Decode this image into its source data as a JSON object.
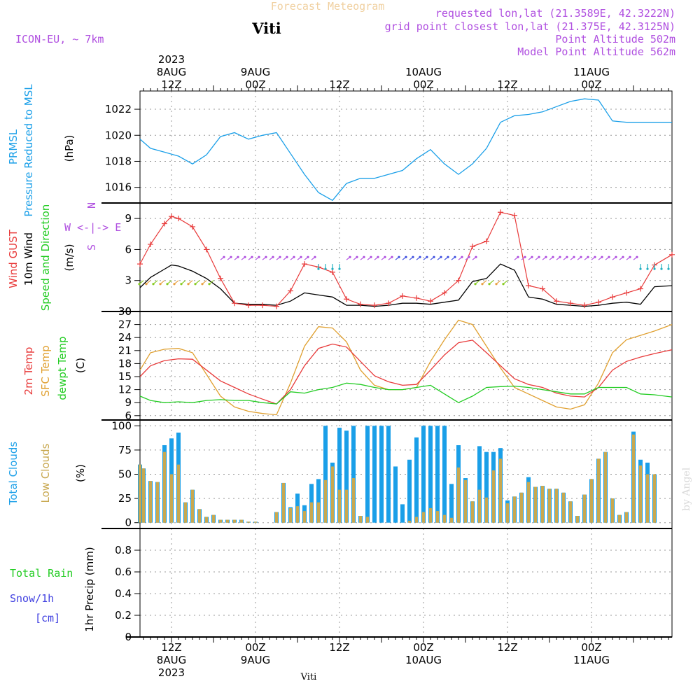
{
  "header": {
    "title": "Forecast Meteogram",
    "location": "Viti",
    "model": "ICON-EU, ~ 7km",
    "requested": "requested lon,lat (21.3589E, 42.3222N)",
    "gridpoint": "grid point closest lon,lat (21.375E, 42.3125N)",
    "point_alt": "Point Altitude 502m",
    "model_alt": "Model Point Altitude 562m",
    "watermark": "by Angel",
    "footer_location": "Viti"
  },
  "time_axis": {
    "top_labels": [
      {
        "lines": [
          "2023",
          "8AUG",
          "12Z"
        ],
        "hour": 12
      },
      {
        "lines": [
          "9AUG",
          "00Z"
        ],
        "hour": 24
      },
      {
        "lines": [
          "12Z"
        ],
        "hour": 36
      },
      {
        "lines": [
          "10AUG",
          "00Z"
        ],
        "hour": 48
      },
      {
        "lines": [
          "12Z"
        ],
        "hour": 60
      },
      {
        "lines": [
          "11AUG",
          "00Z"
        ],
        "hour": 72
      }
    ],
    "bottom_labels": [
      {
        "lines": [
          "12Z",
          "8AUG",
          "2023"
        ],
        "hour": 12
      },
      {
        "lines": [
          "00Z",
          "9AUG"
        ],
        "hour": 24
      },
      {
        "lines": [
          "12Z"
        ],
        "hour": 36
      },
      {
        "lines": [
          "00Z",
          "10AUG"
        ],
        "hour": 48
      },
      {
        "lines": [
          "12Z"
        ],
        "hour": 60
      },
      {
        "lines": [
          "00Z",
          "11AUG"
        ],
        "hour": 72
      }
    ],
    "start_hour": 7.5,
    "end_hour": 83.5
  },
  "colors": {
    "pressure": "#1a9fe8",
    "gust": "#e83a3a",
    "wind": "#000000",
    "temp": "#e83a3a",
    "sfc": "#e0a030",
    "dewpt": "#22cc22",
    "total_clouds": "#1a9fe8",
    "low_clouds": "#c8a850",
    "rain": "#22cc22",
    "snow": "#4040e0",
    "purple": "#b050e0",
    "title": "#f0d0a0"
  },
  "legends": {
    "pressure": {
      "lines": [
        "PRMSL",
        "Pressure Reduced to MSL"
      ],
      "unit": "(hPa)"
    },
    "wind": {
      "lines": [
        "Wind GUST",
        "10m Wind",
        "Speed and Direction"
      ],
      "unit": "(m/s)",
      "compass": [
        "N",
        "W <-|-> E",
        "S"
      ]
    },
    "temp": {
      "lines": [
        "2m Temp",
        "SFC Temp",
        "dewpt Temp"
      ],
      "unit": "(C)"
    },
    "clouds": {
      "lines": [
        "Total Clouds",
        "Low Clouds"
      ],
      "unit": "(%)"
    },
    "precip": {
      "lines": [
        "Total  Rain",
        "Snow/1h",
        "[cm]"
      ],
      "unit": "1hr Precip (mm)"
    }
  },
  "chart_data": [
    {
      "type": "line",
      "title": "PRMSL Pressure Reduced to MSL",
      "ylabel": "(hPa)",
      "ylim": [
        1014.8,
        1023.4
      ],
      "yticks": [
        "1016",
        "1018",
        "1020",
        "1022"
      ],
      "x_hours": [
        7.5,
        9,
        11,
        13,
        15,
        17,
        19,
        21,
        23,
        25,
        27,
        29,
        31,
        33,
        35,
        37,
        39,
        41,
        43,
        45,
        47,
        49,
        51,
        53,
        55,
        57,
        59,
        61,
        63,
        65,
        67,
        69,
        71,
        73,
        75,
        77,
        79,
        81,
        83.5
      ],
      "series": [
        {
          "name": "PRMSL",
          "values": [
            1019.7,
            1019.0,
            1018.7,
            1018.4,
            1017.8,
            1018.5,
            1019.9,
            1020.2,
            1019.7,
            1020.0,
            1020.2,
            1018.6,
            1017.0,
            1015.6,
            1015.0,
            1016.3,
            1016.7,
            1016.7,
            1017.0,
            1017.3,
            1018.2,
            1018.9,
            1017.8,
            1017.0,
            1017.8,
            1019.0,
            1021.0,
            1021.5,
            1021.6,
            1021.8,
            1022.2,
            1022.6,
            1022.8,
            1022.7,
            1021.1,
            1021.0,
            1021.0,
            1021.0,
            1021.0
          ]
        }
      ]
    },
    {
      "type": "line",
      "title": "Wind GUST / 10m Wind Speed and Direction",
      "ylabel": "(m/s)",
      "ylim": [
        0,
        10.5
      ],
      "yticks": [
        "0",
        "3",
        "6",
        "9"
      ],
      "x_hours": [
        7.5,
        9,
        11,
        12,
        13,
        15,
        17,
        19,
        21,
        23,
        25,
        27,
        29,
        31,
        33,
        35,
        37,
        39,
        41,
        43,
        45,
        47,
        49,
        51,
        53,
        55,
        57,
        59,
        61,
        63,
        65,
        67,
        69,
        71,
        73,
        75,
        77,
        79,
        81,
        83.5
      ],
      "series": [
        {
          "name": "Wind GUST",
          "values": [
            4.6,
            6.5,
            8.5,
            9.2,
            9.0,
            8.2,
            6.0,
            3.2,
            0.8,
            0.6,
            0.6,
            0.5,
            2.0,
            4.6,
            4.3,
            3.8,
            1.2,
            0.7,
            0.6,
            0.8,
            1.5,
            1.3,
            1.0,
            1.8,
            3.0,
            6.3,
            6.8,
            9.6,
            9.3,
            2.5,
            2.2,
            1.0,
            0.8,
            0.6,
            0.9,
            1.4,
            1.8,
            2.2,
            4.5,
            5.5
          ]
        },
        {
          "name": "10m Wind",
          "values": [
            2.3,
            3.3,
            4.1,
            4.5,
            4.4,
            3.9,
            3.2,
            2.2,
            0.8,
            0.7,
            0.7,
            0.6,
            1.0,
            1.8,
            1.6,
            1.4,
            0.6,
            0.6,
            0.5,
            0.6,
            0.8,
            0.8,
            0.7,
            0.9,
            1.1,
            2.9,
            3.2,
            4.6,
            4.0,
            1.4,
            1.2,
            0.7,
            0.6,
            0.5,
            0.6,
            0.8,
            0.9,
            0.7,
            2.4,
            2.5
          ]
        }
      ]
    },
    {
      "type": "line",
      "title": "2m Temp / SFC Temp / dewpt Temp",
      "ylabel": "(C)",
      "ylim": [
        5,
        30
      ],
      "yticks": [
        "6",
        "9",
        "12",
        "15",
        "18",
        "21",
        "24",
        "27",
        "30"
      ],
      "x_hours": [
        7.5,
        9,
        11,
        13,
        15,
        17,
        19,
        21,
        23,
        25,
        27,
        29,
        31,
        33,
        35,
        37,
        39,
        41,
        43,
        45,
        47,
        49,
        51,
        53,
        55,
        57,
        59,
        61,
        63,
        65,
        67,
        69,
        71,
        73,
        75,
        77,
        79,
        81,
        83.5
      ],
      "series": [
        {
          "name": "2m Temp",
          "values": [
            15,
            17.5,
            18.7,
            19.1,
            19.0,
            16.5,
            14.0,
            12.5,
            11.0,
            9.8,
            8.7,
            12.0,
            17.5,
            21.5,
            22.5,
            21.8,
            18.5,
            15.2,
            13.8,
            13.0,
            13.2,
            16.5,
            20.0,
            22.8,
            23.4,
            20.5,
            17.5,
            14.5,
            13.2,
            12.5,
            11.2,
            10.5,
            10.3,
            12.5,
            16.5,
            18.5,
            19.5,
            20.3,
            21.2
          ]
        },
        {
          "name": "SFC Temp",
          "values": [
            16.5,
            20.5,
            21.3,
            21.5,
            20.5,
            15.5,
            10.5,
            8.0,
            7.0,
            6.5,
            6.2,
            13.5,
            22.0,
            26.5,
            26.2,
            23.0,
            16.5,
            13.0,
            12.0,
            12.0,
            12.5,
            18.5,
            23.5,
            28.0,
            27.0,
            22.0,
            17.0,
            12.5,
            11.0,
            9.5,
            8.0,
            7.5,
            8.5,
            13.5,
            20.5,
            23.5,
            24.5,
            25.5,
            27.0
          ]
        },
        {
          "name": "dewpt Temp",
          "values": [
            10.5,
            9.5,
            9.0,
            9.2,
            9.0,
            9.5,
            9.7,
            9.5,
            9.5,
            9.0,
            8.7,
            11.5,
            11.2,
            12.0,
            12.5,
            13.5,
            13.2,
            12.5,
            12.0,
            12.0,
            12.5,
            13.0,
            11.0,
            9.0,
            10.5,
            12.5,
            12.7,
            12.8,
            12.5,
            12.0,
            11.5,
            11.0,
            11.0,
            12.5,
            12.5,
            12.5,
            11.0,
            10.8,
            10.3
          ]
        }
      ]
    },
    {
      "type": "bar",
      "title": "Total Clouds / Low Clouds",
      "ylabel": "(%)",
      "ylim": [
        -6,
        106
      ],
      "yticks": [
        "0",
        "25",
        "50",
        "75",
        "100"
      ],
      "x_hours": [
        7.5,
        8,
        9,
        10,
        11,
        12,
        13,
        14,
        15,
        16,
        17,
        18,
        19,
        20,
        21,
        22,
        23,
        24,
        25,
        26,
        27,
        28,
        29,
        30,
        31,
        32,
        33,
        34,
        35,
        36,
        37,
        38,
        39,
        40,
        41,
        42,
        43,
        44,
        45,
        46,
        47,
        48,
        49,
        50,
        51,
        52,
        53,
        54,
        55,
        56,
        57,
        58,
        59,
        60,
        61,
        62,
        63,
        64,
        65,
        66,
        67,
        68,
        69,
        70,
        71,
        72,
        73,
        74,
        75,
        76,
        77,
        78,
        79,
        80,
        81,
        82,
        83,
        83.5
      ],
      "series": [
        {
          "name": "Total Clouds",
          "values": [
            60,
            56,
            43,
            42,
            80,
            87,
            93,
            21,
            34,
            14,
            6,
            8,
            3,
            3,
            3,
            3,
            1,
            1,
            0,
            0,
            11,
            41,
            16,
            30,
            18,
            40,
            45,
            100,
            62,
            98,
            95,
            100,
            7,
            100,
            100,
            100,
            100,
            58,
            19,
            65,
            88,
            100,
            100,
            100,
            100,
            40,
            80,
            46,
            22,
            79,
            73,
            73,
            77,
            23,
            27,
            31,
            47,
            37,
            38,
            35,
            35,
            31,
            22,
            7,
            29,
            45,
            66,
            73,
            25,
            8,
            11,
            94,
            65,
            62,
            50,
            0,
            0,
            0
          ]
        },
        {
          "name": "Low Clouds",
          "values": [
            60,
            56,
            43,
            42,
            73,
            50,
            60,
            21,
            34,
            14,
            6,
            8,
            3,
            3,
            3,
            3,
            1,
            1,
            0,
            0,
            11,
            41,
            15,
            17,
            12,
            21,
            21,
            44,
            58,
            34,
            34,
            46,
            7,
            6,
            0,
            0,
            0,
            0,
            0,
            2,
            6,
            11,
            15,
            12,
            8,
            5,
            57,
            44,
            22,
            34,
            26,
            54,
            66,
            20,
            27,
            31,
            42,
            37,
            38,
            35,
            35,
            31,
            22,
            7,
            29,
            45,
            66,
            73,
            25,
            8,
            11,
            91,
            59,
            50,
            50,
            0,
            0,
            0
          ]
        }
      ]
    },
    {
      "type": "bar",
      "title": "1hr Precip",
      "ylabel": "1hr Precip (mm)",
      "ylim": [
        0,
        1
      ],
      "yticks": [
        "0",
        "0.2",
        "0.4",
        "0.6",
        "0.8"
      ],
      "series": [
        {
          "name": "Total Rain",
          "values": []
        },
        {
          "name": "Snow/1h",
          "values": []
        }
      ]
    }
  ]
}
